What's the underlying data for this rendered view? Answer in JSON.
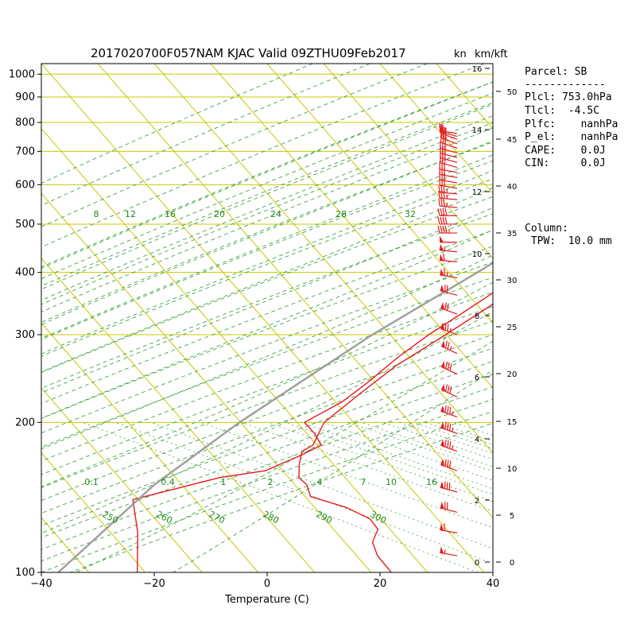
{
  "title": "2017020700F057NAM KJAC Valid 09ZTHU09Feb2017",
  "units": {
    "speed": "kn",
    "height": "km/kft"
  },
  "parcel": {
    "heading": "Parcel: SB",
    "divider": "-------------",
    "lines": [
      "Plcl: 753.0hPa",
      "Tlcl:  -4.5C",
      "Plfc:    nanhPa",
      "P_el:    nanhPa",
      "CAPE:    0.0J",
      "CIN:     0.0J"
    ]
  },
  "column": {
    "heading": "Column:",
    "tpw": " TPW:  10.0 mm"
  },
  "chart_data": {
    "type": "line",
    "title": "2017020700F057NAM KJAC Valid 09ZTHU09Feb2017",
    "xlabel": "Temperature (C)",
    "ylabel": "",
    "xlim": [
      -40,
      40
    ],
    "ylim": [
      1050,
      100
    ],
    "y_scale": "log",
    "x_ticks": [
      "−40",
      "−20",
      "0",
      "20",
      "40"
    ],
    "x_tick_values": [
      -40,
      -20,
      0,
      20,
      40
    ],
    "pressure_ticks": [
      100,
      200,
      300,
      400,
      500,
      600,
      700,
      800,
      900,
      1000
    ],
    "km_ticks": [
      0,
      2,
      4,
      6,
      8,
      10,
      12,
      14,
      16
    ],
    "kft_ticks": [
      0,
      5,
      10,
      15,
      20,
      25,
      30,
      35,
      40,
      45,
      50
    ],
    "mixing_ratio_labels": [
      "0.1",
      "0.4",
      "1",
      "2",
      "4",
      "7",
      "10",
      "16"
    ],
    "mixing_ratio_labels_200": [
      "8",
      "12",
      "16",
      "20",
      "24",
      "28",
      "32"
    ],
    "dry_adiabat_labels": [
      "250",
      "260",
      "270",
      "280",
      "290",
      "300"
    ],
    "series": [
      {
        "key": "temperature",
        "color": "#e8191f",
        "points": [
          [
            758,
            7.4
          ],
          [
            755,
            8
          ],
          [
            740,
            8.6
          ],
          [
            720,
            9.6
          ],
          [
            705,
            10
          ],
          [
            690,
            9.8
          ],
          [
            670,
            9.2
          ],
          [
            655,
            9.1
          ],
          [
            640,
            8.7
          ],
          [
            620,
            8.2
          ],
          [
            600,
            8.8
          ],
          [
            580,
            8.9
          ],
          [
            555,
            8.2
          ],
          [
            520,
            6.7
          ],
          [
            490,
            5
          ],
          [
            450,
            3.4
          ],
          [
            420,
            2.5
          ],
          [
            390,
            1.2
          ],
          [
            350,
            -1
          ],
          [
            300,
            -5
          ],
          [
            260,
            -9
          ],
          [
            230,
            -11
          ],
          [
            200,
            -13
          ],
          [
            180,
            -11.5
          ],
          [
            175,
            -12.5
          ],
          [
            165,
            -11
          ],
          [
            155,
            -9
          ],
          [
            150,
            -6.5
          ],
          [
            142,
            -4
          ],
          [
            135,
            4
          ],
          [
            128,
            10
          ],
          [
            122,
            13
          ],
          [
            115,
            14
          ],
          [
            108,
            17
          ],
          [
            100,
            22
          ]
        ]
      },
      {
        "key": "dewpoint",
        "color": "#e8191f",
        "points": [
          [
            758,
            6.8
          ],
          [
            740,
            7.5
          ],
          [
            700,
            8.9
          ],
          [
            660,
            8.3
          ],
          [
            620,
            7.5
          ],
          [
            580,
            7.7
          ],
          [
            540,
            6.8
          ],
          [
            500,
            5
          ],
          [
            460,
            3
          ],
          [
            430,
            1.5
          ],
          [
            410,
            -0.5
          ],
          [
            390,
            -2
          ],
          [
            365,
            -3
          ],
          [
            330,
            -5.5
          ],
          [
            300,
            -8
          ],
          [
            270,
            -10
          ],
          [
            240,
            -11.5
          ],
          [
            220,
            -13
          ],
          [
            200,
            -16.5
          ],
          [
            190,
            -13
          ],
          [
            180,
            -10
          ],
          [
            172,
            -12
          ],
          [
            160,
            -16
          ],
          [
            155,
            -23
          ],
          [
            140,
            -35
          ],
          [
            120,
            -29
          ],
          [
            100,
            -23
          ]
        ]
      },
      {
        "key": "parcel",
        "color": "#a0a0a0",
        "points": [
          [
            760,
            7
          ],
          [
            700,
            5.5
          ],
          [
            600,
            2.5
          ],
          [
            500,
            -2.5
          ],
          [
            400,
            -9
          ],
          [
            300,
            -18
          ],
          [
            200,
            -28
          ],
          [
            150,
            -33.5
          ],
          [
            100,
            -37
          ]
        ]
      }
    ],
    "wind_barbs": [
      {
        "p": 760,
        "dir": 280,
        "kt": 25
      },
      {
        "p": 750,
        "dir": 285,
        "kt": 25
      },
      {
        "p": 740,
        "dir": 290,
        "kt": 30
      },
      {
        "p": 725,
        "dir": 290,
        "kt": 30
      },
      {
        "p": 710,
        "dir": 290,
        "kt": 30
      },
      {
        "p": 695,
        "dir": 285,
        "kt": 30
      },
      {
        "p": 680,
        "dir": 285,
        "kt": 30
      },
      {
        "p": 665,
        "dir": 285,
        "kt": 30
      },
      {
        "p": 650,
        "dir": 285,
        "kt": 30
      },
      {
        "p": 635,
        "dir": 280,
        "kt": 30
      },
      {
        "p": 620,
        "dir": 280,
        "kt": 30
      },
      {
        "p": 605,
        "dir": 280,
        "kt": 30
      },
      {
        "p": 590,
        "dir": 280,
        "kt": 30
      },
      {
        "p": 575,
        "dir": 275,
        "kt": 35
      },
      {
        "p": 560,
        "dir": 275,
        "kt": 35
      },
      {
        "p": 540,
        "dir": 275,
        "kt": 35
      },
      {
        "p": 520,
        "dir": 270,
        "kt": 40
      },
      {
        "p": 500,
        "dir": 270,
        "kt": 40
      },
      {
        "p": 480,
        "dir": 270,
        "kt": 45
      },
      {
        "p": 460,
        "dir": 270,
        "kt": 50
      },
      {
        "p": 440,
        "dir": 275,
        "kt": 55
      },
      {
        "p": 420,
        "dir": 275,
        "kt": 60
      },
      {
        "p": 390,
        "dir": 280,
        "kt": 65
      },
      {
        "p": 360,
        "dir": 285,
        "kt": 70
      },
      {
        "p": 330,
        "dir": 290,
        "kt": 70
      },
      {
        "p": 300,
        "dir": 290,
        "kt": 75
      },
      {
        "p": 275,
        "dir": 295,
        "kt": 75
      },
      {
        "p": 250,
        "dir": 295,
        "kt": 80
      },
      {
        "p": 225,
        "dir": 295,
        "kt": 80
      },
      {
        "p": 205,
        "dir": 290,
        "kt": 85
      },
      {
        "p": 190,
        "dir": 290,
        "kt": 85
      },
      {
        "p": 175,
        "dir": 290,
        "kt": 85
      },
      {
        "p": 160,
        "dir": 290,
        "kt": 80
      },
      {
        "p": 145,
        "dir": 285,
        "kt": 80
      },
      {
        "p": 132,
        "dir": 285,
        "kt": 70
      },
      {
        "p": 120,
        "dir": 280,
        "kt": 60
      },
      {
        "p": 108,
        "dir": 280,
        "kt": 55
      }
    ],
    "grid": true
  }
}
